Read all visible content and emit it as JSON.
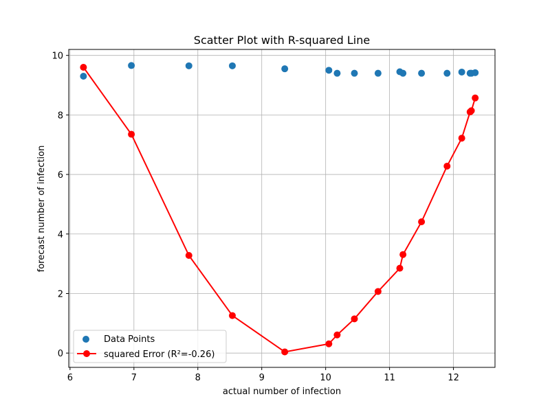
{
  "chart_data": {
    "type": "scatter",
    "title": "Scatter Plot with R-squared Line",
    "xlabel": "actual number of infection",
    "ylabel": "forecast number of infection",
    "xlim": [
      5.98,
      12.65
    ],
    "ylim": [
      -0.48,
      10.2
    ],
    "xticks": [
      6,
      7,
      8,
      9,
      10,
      11,
      12
    ],
    "yticks": [
      0,
      2,
      4,
      6,
      8,
      10
    ],
    "grid": true,
    "legend_position": "lower-left",
    "series": [
      {
        "name": "Data Points",
        "kind": "scatter",
        "color": "#1f77b4",
        "x": [
          6.21,
          6.96,
          7.86,
          8.54,
          9.36,
          10.05,
          10.18,
          10.45,
          10.82,
          11.16,
          11.21,
          11.5,
          11.9,
          12.13,
          12.26,
          12.28,
          12.34
        ],
        "y": [
          9.3,
          9.66,
          9.65,
          9.65,
          9.55,
          9.5,
          9.4,
          9.4,
          9.4,
          9.45,
          9.4,
          9.4,
          9.4,
          9.44,
          9.4,
          9.4,
          9.42
        ]
      },
      {
        "name": "squared Error (R²=-0.26)",
        "kind": "line-marker",
        "color": "#ff0000",
        "x": [
          6.21,
          6.96,
          7.86,
          8.54,
          9.36,
          10.05,
          10.18,
          10.45,
          10.82,
          11.16,
          11.21,
          11.5,
          11.9,
          12.13,
          12.26,
          12.28,
          12.34
        ],
        "y": [
          9.6,
          7.35,
          3.28,
          1.26,
          0.04,
          0.31,
          0.61,
          1.15,
          2.07,
          2.85,
          3.31,
          4.41,
          6.28,
          7.22,
          8.1,
          8.14,
          8.57
        ]
      }
    ]
  }
}
